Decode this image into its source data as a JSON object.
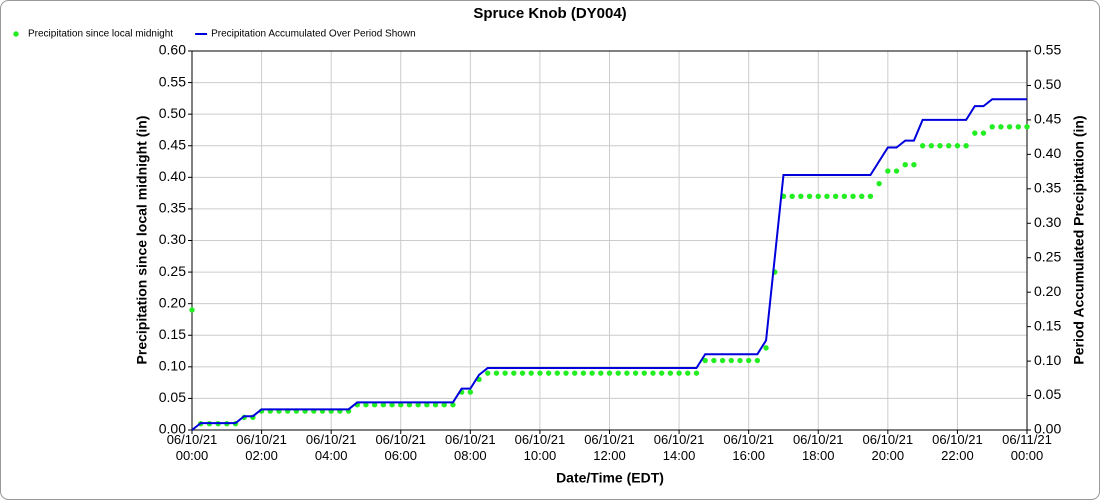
{
  "chart_data": {
    "type": "line",
    "title": "Spruce Knob (DY004)",
    "x_label": "Date/Time (EDT)",
    "y_label": "Precipitation since local midnight (in)",
    "y2_label": "Period Accumulated Precipitation (in)",
    "legend": "top-left",
    "grid": true,
    "xlim": [
      "06/10/21 00:00",
      "06/11/21 00:00"
    ],
    "xticks": [
      "06/10/21 00:00",
      "06/10/21 02:00",
      "06/10/21 04:00",
      "06/10/21 06:00",
      "06/10/21 08:00",
      "06/10/21 10:00",
      "06/10/21 12:00",
      "06/10/21 14:00",
      "06/10/21 16:00",
      "06/10/21 18:00",
      "06/10/21 20:00",
      "06/10/21 22:00",
      "06/11/21 00:00"
    ],
    "ylim": [
      0,
      0.6
    ],
    "yticks": [
      {
        "value": 0,
        "label": "0.00"
      },
      {
        "value": 0.05,
        "label": "0.05"
      },
      {
        "value": 0.1,
        "label": "0.10"
      },
      {
        "value": 0.15,
        "label": "0.15"
      },
      {
        "value": 0.2,
        "label": "0.20"
      },
      {
        "value": 0.25,
        "label": "0.25"
      },
      {
        "value": 0.3,
        "label": "0.30"
      },
      {
        "value": 0.35,
        "label": "0.35"
      },
      {
        "value": 0.4,
        "label": "0.40"
      },
      {
        "value": 0.45,
        "label": "0.45"
      },
      {
        "value": 0.5,
        "label": "0.50"
      },
      {
        "value": 0.55,
        "label": "0.55"
      },
      {
        "value": 0.6,
        "label": "0.60"
      }
    ],
    "y2lim": [
      0,
      0.55
    ],
    "y2ticks": [
      {
        "value": 0,
        "label": "0.00"
      },
      {
        "value": 0.05,
        "label": "0.05"
      },
      {
        "value": 0.1,
        "label": "0.10"
      },
      {
        "value": 0.15,
        "label": "0.15"
      },
      {
        "value": 0.2,
        "label": "0.20"
      },
      {
        "value": 0.25,
        "label": "0.25"
      },
      {
        "value": 0.3,
        "label": "0.30"
      },
      {
        "value": 0.35,
        "label": "0.35"
      },
      {
        "value": 0.4,
        "label": "0.40"
      },
      {
        "value": 0.45,
        "label": "0.45"
      },
      {
        "value": 0.5,
        "label": "0.50"
      },
      {
        "value": 0.55,
        "label": "0.55"
      }
    ],
    "x": [
      "06/10/21 00:00",
      "06/10/21 00:15",
      "06/10/21 00:30",
      "06/10/21 00:45",
      "06/10/21 01:00",
      "06/10/21 01:15",
      "06/10/21 01:30",
      "06/10/21 01:45",
      "06/10/21 02:00",
      "06/10/21 02:15",
      "06/10/21 02:30",
      "06/10/21 02:45",
      "06/10/21 03:00",
      "06/10/21 03:15",
      "06/10/21 03:30",
      "06/10/21 03:45",
      "06/10/21 04:00",
      "06/10/21 04:15",
      "06/10/21 04:30",
      "06/10/21 04:45",
      "06/10/21 05:00",
      "06/10/21 05:15",
      "06/10/21 05:30",
      "06/10/21 05:45",
      "06/10/21 06:00",
      "06/10/21 06:15",
      "06/10/21 06:30",
      "06/10/21 06:45",
      "06/10/21 07:00",
      "06/10/21 07:15",
      "06/10/21 07:30",
      "06/10/21 07:45",
      "06/10/21 08:00",
      "06/10/21 08:15",
      "06/10/21 08:30",
      "06/10/21 08:45",
      "06/10/21 09:00",
      "06/10/21 09:15",
      "06/10/21 09:30",
      "06/10/21 09:45",
      "06/10/21 10:00",
      "06/10/21 10:15",
      "06/10/21 10:30",
      "06/10/21 10:45",
      "06/10/21 11:00",
      "06/10/21 11:15",
      "06/10/21 11:30",
      "06/10/21 11:45",
      "06/10/21 12:00",
      "06/10/21 12:15",
      "06/10/21 12:30",
      "06/10/21 12:45",
      "06/10/21 13:00",
      "06/10/21 13:15",
      "06/10/21 13:30",
      "06/10/21 13:45",
      "06/10/21 14:00",
      "06/10/21 14:15",
      "06/10/21 14:30",
      "06/10/21 14:45",
      "06/10/21 15:00",
      "06/10/21 15:15",
      "06/10/21 15:30",
      "06/10/21 15:45",
      "06/10/21 16:00",
      "06/10/21 16:15",
      "06/10/21 16:30",
      "06/10/21 16:45",
      "06/10/21 17:00",
      "06/10/21 17:15",
      "06/10/21 17:30",
      "06/10/21 17:45",
      "06/10/21 18:00",
      "06/10/21 18:15",
      "06/10/21 18:30",
      "06/10/21 18:45",
      "06/10/21 19:00",
      "06/10/21 19:15",
      "06/10/21 19:30",
      "06/10/21 19:45",
      "06/10/21 20:00",
      "06/10/21 20:15",
      "06/10/21 20:30",
      "06/10/21 20:45",
      "06/10/21 21:00",
      "06/10/21 21:15",
      "06/10/21 21:30",
      "06/10/21 21:45",
      "06/10/21 22:00",
      "06/10/21 22:15",
      "06/10/21 22:30",
      "06/10/21 22:45",
      "06/10/21 23:00",
      "06/10/21 23:15",
      "06/10/21 23:30",
      "06/10/21 23:45",
      "06/11/21 00:00"
    ],
    "series": [
      {
        "name": "Precipitation since local midnight",
        "color": "#22ee22",
        "mode": "markers",
        "values": [
          0.19,
          0.01,
          0.01,
          0.01,
          0.01,
          0.01,
          0.02,
          0.02,
          0.03,
          0.03,
          0.03,
          0.03,
          0.03,
          0.03,
          0.03,
          0.03,
          0.03,
          0.03,
          0.03,
          0.04,
          0.04,
          0.04,
          0.04,
          0.04,
          0.04,
          0.04,
          0.04,
          0.04,
          0.04,
          0.04,
          0.04,
          0.06,
          0.06,
          0.08,
          0.09,
          0.09,
          0.09,
          0.09,
          0.09,
          0.09,
          0.09,
          0.09,
          0.09,
          0.09,
          0.09,
          0.09,
          0.09,
          0.09,
          0.09,
          0.09,
          0.09,
          0.09,
          0.09,
          0.09,
          0.09,
          0.09,
          0.09,
          0.09,
          0.09,
          0.11,
          0.11,
          0.11,
          0.11,
          0.11,
          0.11,
          0.11,
          0.13,
          0.25,
          0.37,
          0.37,
          0.37,
          0.37,
          0.37,
          0.37,
          0.37,
          0.37,
          0.37,
          0.37,
          0.37,
          0.39,
          0.41,
          0.41,
          0.42,
          0.42,
          0.45,
          0.45,
          0.45,
          0.45,
          0.45,
          0.45,
          0.47,
          0.47,
          0.48,
          0.48,
          0.48,
          0.48,
          0.48
        ]
      },
      {
        "name": "Precipitation Accumulated Over Period Shown",
        "color": "#0000dd",
        "mode": "lines",
        "axis": "y2",
        "values": [
          0,
          0.01,
          0.01,
          0.01,
          0.01,
          0.01,
          0.02,
          0.02,
          0.03,
          0.03,
          0.03,
          0.03,
          0.03,
          0.03,
          0.03,
          0.03,
          0.03,
          0.03,
          0.03,
          0.04,
          0.04,
          0.04,
          0.04,
          0.04,
          0.04,
          0.04,
          0.04,
          0.04,
          0.04,
          0.04,
          0.04,
          0.06,
          0.06,
          0.08,
          0.09,
          0.09,
          0.09,
          0.09,
          0.09,
          0.09,
          0.09,
          0.09,
          0.09,
          0.09,
          0.09,
          0.09,
          0.09,
          0.09,
          0.09,
          0.09,
          0.09,
          0.09,
          0.09,
          0.09,
          0.09,
          0.09,
          0.09,
          0.09,
          0.09,
          0.11,
          0.11,
          0.11,
          0.11,
          0.11,
          0.11,
          0.11,
          0.13,
          0.25,
          0.37,
          0.37,
          0.37,
          0.37,
          0.37,
          0.37,
          0.37,
          0.37,
          0.37,
          0.37,
          0.37,
          0.39,
          0.41,
          0.41,
          0.42,
          0.42,
          0.45,
          0.45,
          0.45,
          0.45,
          0.45,
          0.45,
          0.47,
          0.47,
          0.48,
          0.48,
          0.48,
          0.48,
          0.48
        ]
      }
    ]
  }
}
